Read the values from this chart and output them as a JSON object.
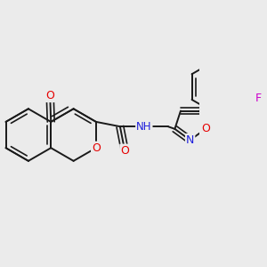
{
  "bg_color": "#ebebeb",
  "bond_color": "#1a1a1a",
  "atom_colors": {
    "O": "#e60000",
    "N": "#2020dd",
    "F": "#cc00cc",
    "C": "#1a1a1a"
  },
  "figsize": [
    3.0,
    3.0
  ],
  "dpi": 100
}
